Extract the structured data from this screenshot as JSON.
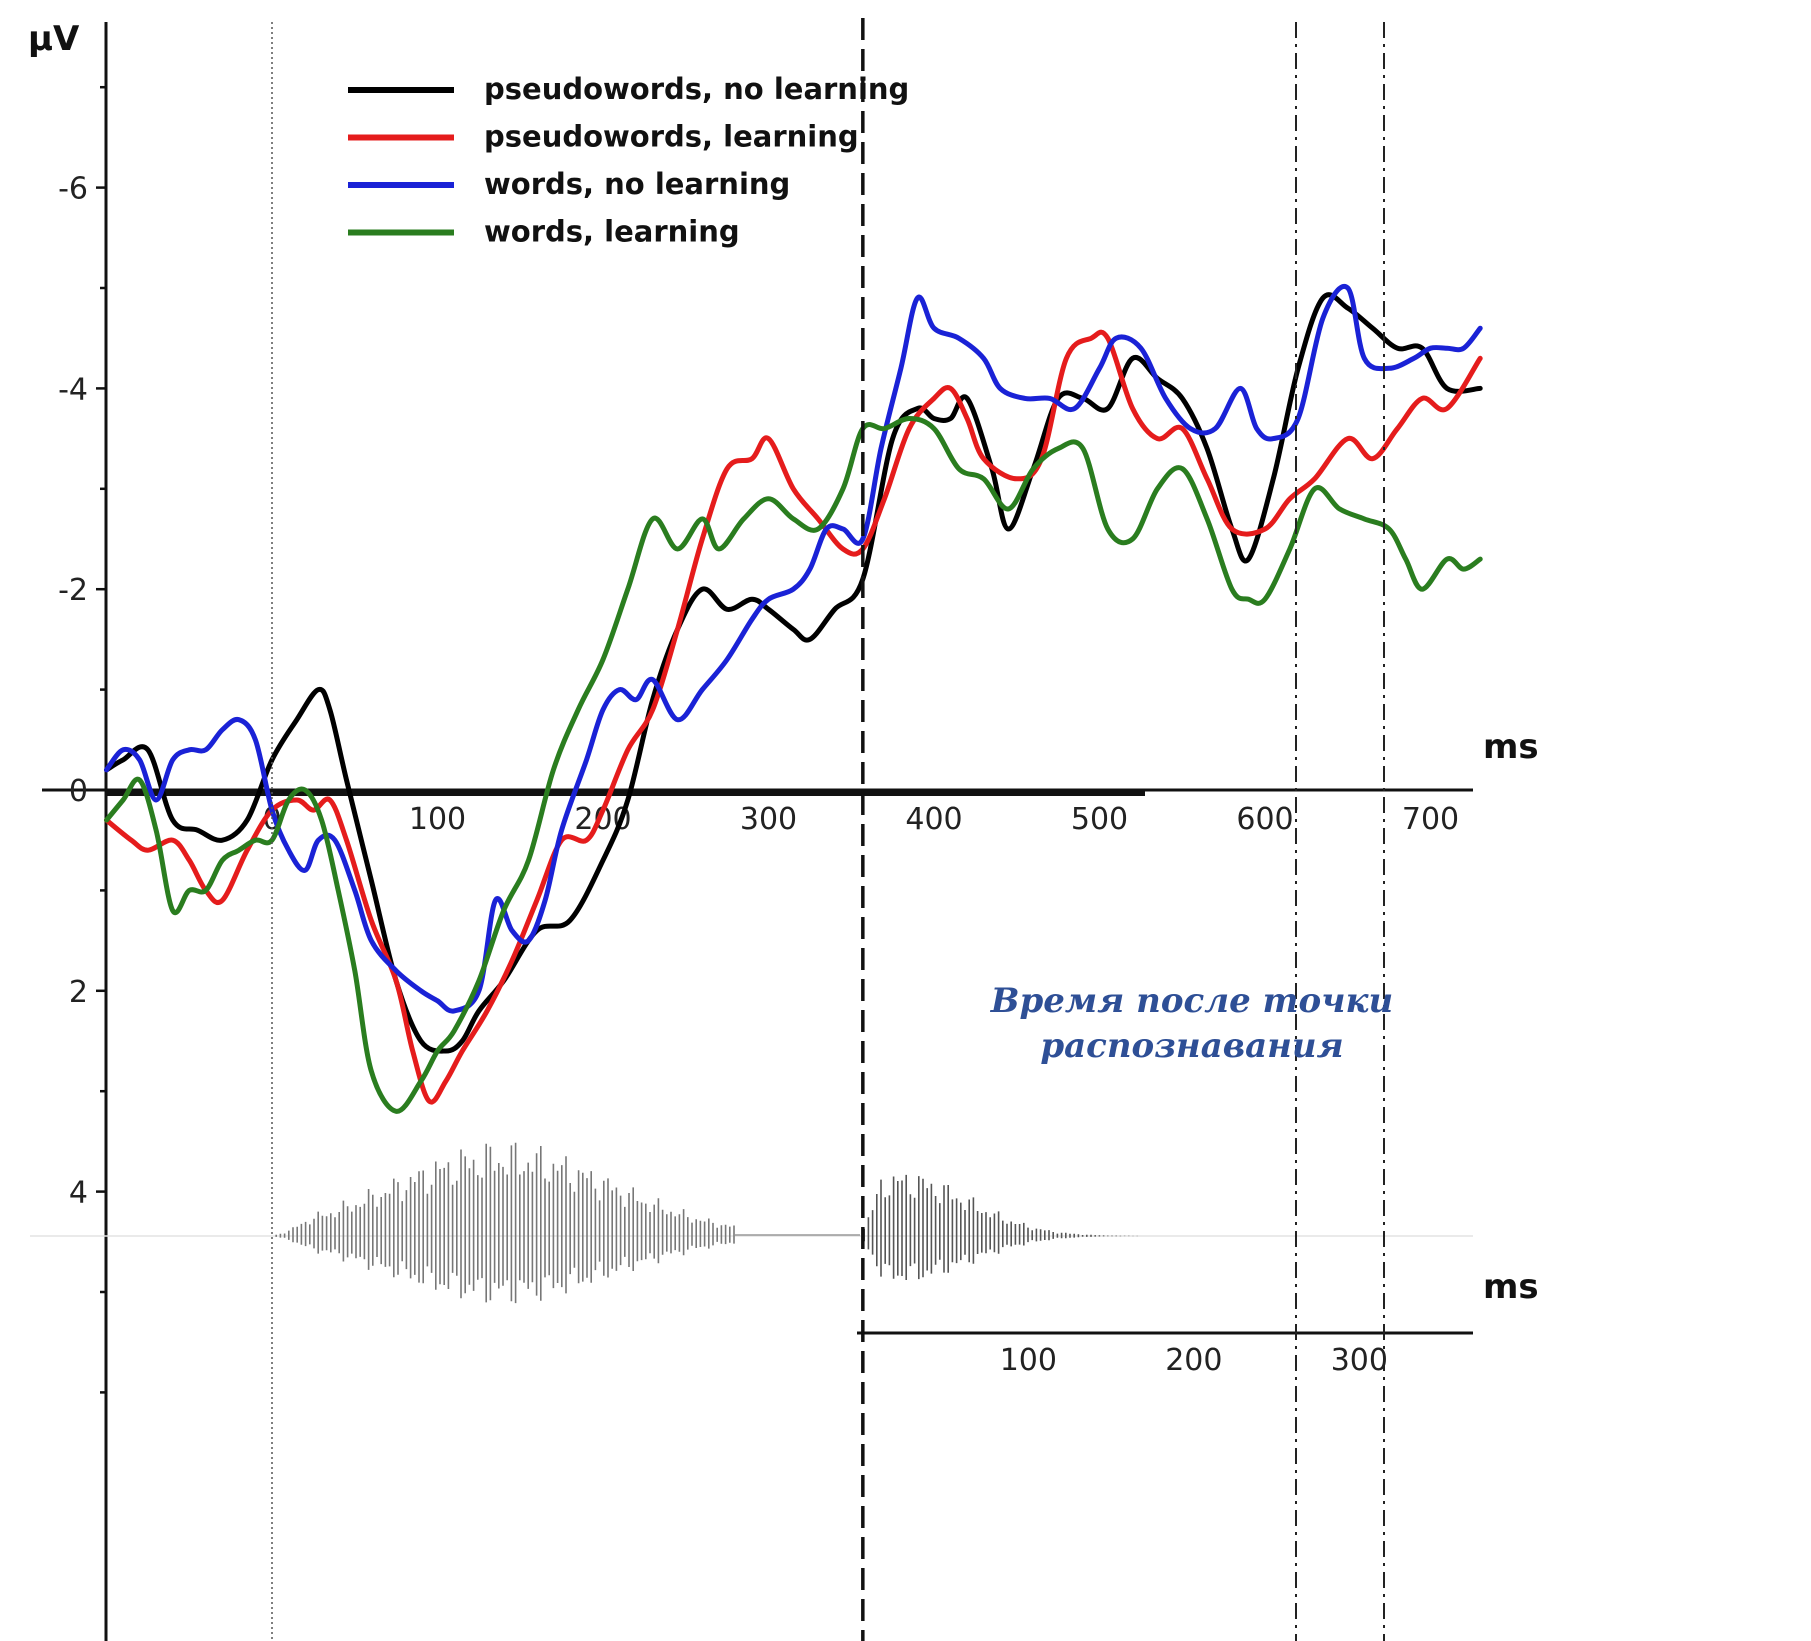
{
  "chart_data": {
    "type": "line",
    "ylabel": "µV",
    "xlabel": "ms",
    "y_inverted": true,
    "ylim": [
      -7.5,
      6.3
    ],
    "xlim": [
      -100,
      730
    ],
    "y_ticks": [
      -6,
      -4,
      -2,
      0,
      2,
      4
    ],
    "x_ticks": [
      0,
      100,
      200,
      300,
      400,
      500,
      600,
      700
    ],
    "grid": false,
    "legend_position": "top-left",
    "stimulus_onset_ms": 0,
    "recognition_point_ms": 357,
    "secondary_axis": {
      "xlabel": "ms",
      "origin_ms": 357,
      "ticks": [
        100,
        200,
        300
      ]
    },
    "annotation": {
      "line1": "Время после точки",
      "line2": "распознавания"
    },
    "series": [
      {
        "name": "pseudowords, no learning",
        "color": "#000000",
        "x": [
          -100,
          -90,
          -75,
          -60,
          -45,
          -30,
          -15,
          0,
          15,
          28,
          35,
          45,
          60,
          75,
          90,
          105,
          115,
          125,
          140,
          160,
          180,
          200,
          215,
          230,
          245,
          260,
          275,
          290,
          300,
          315,
          325,
          340,
          357,
          375,
          390,
          400,
          410,
          420,
          435,
          445,
          460,
          475,
          490,
          505,
          520,
          535,
          550,
          565,
          580,
          590,
          605,
          620,
          635,
          650,
          665,
          680,
          695,
          710,
          730
        ],
        "y": [
          -0.2,
          -0.3,
          -0.4,
          0.3,
          0.4,
          0.5,
          0.3,
          -0.3,
          -0.7,
          -1.0,
          -0.8,
          -0.1,
          0.9,
          1.9,
          2.5,
          2.6,
          2.5,
          2.2,
          1.9,
          1.4,
          1.3,
          0.7,
          0.1,
          -0.9,
          -1.6,
          -2.0,
          -1.8,
          -1.9,
          -1.8,
          -1.6,
          -1.5,
          -1.8,
          -2.1,
          -3.5,
          -3.8,
          -3.7,
          -3.7,
          -3.9,
          -3.2,
          -2.6,
          -3.2,
          -3.9,
          -3.9,
          -3.8,
          -4.3,
          -4.1,
          -3.9,
          -3.4,
          -2.6,
          -2.3,
          -3.1,
          -4.2,
          -4.9,
          -4.8,
          -4.6,
          -4.4,
          -4.4,
          -4.0,
          -4.0
        ]
      },
      {
        "name": "pseudowords, learning",
        "color": "#e51c1c",
        "x": [
          -100,
          -85,
          -75,
          -60,
          -50,
          -40,
          -30,
          -15,
          0,
          15,
          25,
          35,
          45,
          60,
          75,
          85,
          95,
          105,
          115,
          130,
          145,
          160,
          175,
          190,
          200,
          215,
          230,
          245,
          260,
          275,
          290,
          300,
          315,
          330,
          345,
          357,
          370,
          385,
          400,
          410,
          420,
          430,
          450,
          465,
          480,
          495,
          505,
          520,
          535,
          550,
          565,
          580,
          600,
          615,
          630,
          650,
          665,
          680,
          695,
          710,
          730
        ],
        "y": [
          0.3,
          0.5,
          0.6,
          0.5,
          0.7,
          1.0,
          1.1,
          0.6,
          0.2,
          0.1,
          0.2,
          0.1,
          0.5,
          1.3,
          1.9,
          2.6,
          3.1,
          2.9,
          2.6,
          2.2,
          1.7,
          1.1,
          0.5,
          0.5,
          0.2,
          -0.4,
          -0.8,
          -1.6,
          -2.5,
          -3.2,
          -3.3,
          -3.5,
          -3.0,
          -2.7,
          -2.4,
          -2.4,
          -2.9,
          -3.6,
          -3.9,
          -4.0,
          -3.7,
          -3.3,
          -3.1,
          -3.3,
          -4.3,
          -4.5,
          -4.5,
          -3.8,
          -3.5,
          -3.6,
          -3.1,
          -2.6,
          -2.6,
          -2.9,
          -3.1,
          -3.5,
          -3.3,
          -3.6,
          -3.9,
          -3.8,
          -4.3
        ]
      },
      {
        "name": "words, no learning",
        "color": "#1a22d6",
        "x": [
          -100,
          -90,
          -80,
          -70,
          -60,
          -50,
          -40,
          -30,
          -20,
          -10,
          0,
          10,
          20,
          28,
          38,
          50,
          60,
          75,
          90,
          100,
          110,
          125,
          135,
          145,
          155,
          165,
          175,
          190,
          200,
          210,
          220,
          230,
          245,
          260,
          275,
          290,
          300,
          315,
          325,
          335,
          345,
          357,
          368,
          380,
          390,
          400,
          415,
          430,
          440,
          455,
          470,
          485,
          500,
          510,
          525,
          540,
          555,
          570,
          585,
          595,
          605,
          620,
          635,
          650,
          660,
          675,
          690,
          700,
          710,
          720,
          730
        ],
        "y": [
          -0.2,
          -0.4,
          -0.3,
          0.1,
          -0.3,
          -0.4,
          -0.4,
          -0.6,
          -0.7,
          -0.5,
          0.2,
          0.6,
          0.8,
          0.5,
          0.5,
          1.0,
          1.5,
          1.8,
          2.0,
          2.1,
          2.2,
          2.0,
          1.1,
          1.4,
          1.5,
          1.1,
          0.4,
          -0.3,
          -0.8,
          -1.0,
          -0.9,
          -1.1,
          -0.7,
          -1.0,
          -1.3,
          -1.7,
          -1.9,
          -2.0,
          -2.2,
          -2.6,
          -2.6,
          -2.5,
          -3.4,
          -4.2,
          -4.9,
          -4.6,
          -4.5,
          -4.3,
          -4.0,
          -3.9,
          -3.9,
          -3.8,
          -4.2,
          -4.5,
          -4.4,
          -3.9,
          -3.6,
          -3.6,
          -4.0,
          -3.6,
          -3.5,
          -3.7,
          -4.7,
          -5.0,
          -4.3,
          -4.2,
          -4.3,
          -4.4,
          -4.4,
          -4.4,
          -4.6
        ]
      },
      {
        "name": "words, learning",
        "color": "#2a7d1f",
        "x": [
          -100,
          -90,
          -80,
          -70,
          -60,
          -50,
          -40,
          -30,
          -20,
          -10,
          0,
          10,
          20,
          30,
          40,
          50,
          60,
          75,
          90,
          100,
          110,
          125,
          140,
          155,
          170,
          185,
          200,
          215,
          230,
          245,
          260,
          270,
          285,
          300,
          315,
          330,
          345,
          357,
          370,
          385,
          400,
          415,
          430,
          445,
          460,
          475,
          490,
          505,
          520,
          535,
          550,
          565,
          580,
          590,
          600,
          615,
          630,
          645,
          660,
          675,
          685,
          695,
          710,
          720,
          730
        ],
        "y": [
          0.3,
          0.1,
          -0.1,
          0.4,
          1.2,
          1.0,
          1.0,
          0.7,
          0.6,
          0.5,
          0.5,
          0.1,
          0.0,
          0.3,
          1.0,
          1.8,
          2.8,
          3.2,
          2.9,
          2.6,
          2.4,
          1.9,
          1.2,
          0.7,
          -0.2,
          -0.8,
          -1.3,
          -2.0,
          -2.7,
          -2.4,
          -2.7,
          -2.4,
          -2.7,
          -2.9,
          -2.7,
          -2.6,
          -3.0,
          -3.6,
          -3.6,
          -3.7,
          -3.6,
          -3.2,
          -3.1,
          -2.8,
          -3.2,
          -3.4,
          -3.4,
          -2.6,
          -2.5,
          -3.0,
          -3.2,
          -2.7,
          -2.0,
          -1.9,
          -1.9,
          -2.4,
          -3.0,
          -2.8,
          -2.7,
          -2.6,
          -2.3,
          -2.0,
          -2.3,
          -2.2,
          -2.3
        ]
      }
    ]
  }
}
